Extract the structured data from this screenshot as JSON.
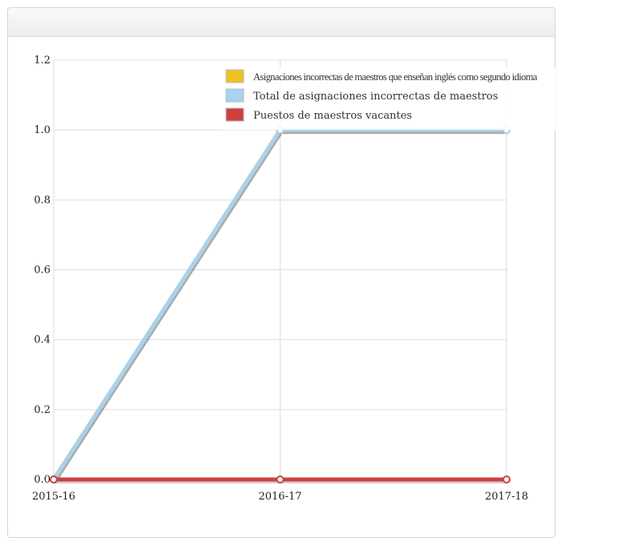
{
  "chart_data": {
    "type": "line",
    "categories": [
      "2015-16",
      "2016-17",
      "2017-18"
    ],
    "ylim": [
      0,
      1.2
    ],
    "yticks": [
      "0.0",
      "0.2",
      "0.4",
      "0.6",
      "0.8",
      "1.0",
      "1.2"
    ],
    "grid": true,
    "legend_position": "top-right",
    "series": [
      {
        "name": "Asignaciones incorrectas de maestros que enseñan inglés como segundo idioma",
        "color": "#f0c020",
        "values": [
          0,
          1,
          1
        ]
      },
      {
        "name": "Total de asignaciones incorrectas de maestros",
        "color": "#a9d1f0",
        "values": [
          0,
          1,
          1
        ]
      },
      {
        "name": "Puestos de maestros vacantes",
        "color": "#cc4040",
        "values": [
          0,
          0,
          0
        ]
      }
    ]
  }
}
